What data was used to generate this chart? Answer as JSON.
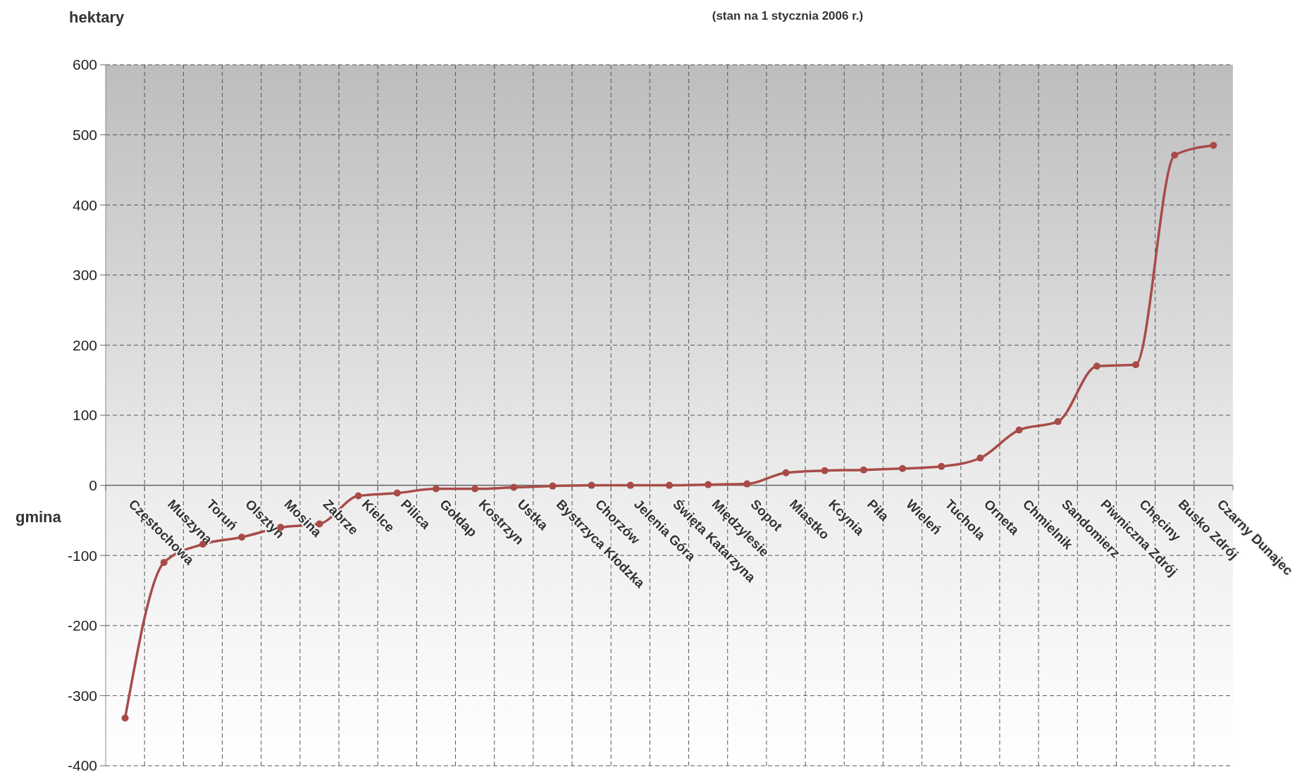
{
  "chart_data": {
    "type": "line",
    "title": "(stan na 1 stycznia 2006 r.)",
    "xlabel": "gmina",
    "ylabel": "hektary",
    "categories": [
      "Częstochowa",
      "Muszyna",
      "Toruń",
      "Olsztyn",
      "Mosina",
      "Zabrze",
      "Kielce",
      "Pilica",
      "Gołdap",
      "Kostrzyn",
      "Ustka",
      "Bystrzyca Kłodzka",
      "Chorzów",
      "Jelenia Góra",
      "Święta Katarzyna",
      "Międzylesie",
      "Sopot",
      "Miastko",
      "Kcynia",
      "Piła",
      "Wieleń",
      "Tuchola",
      "Orneta",
      "Chmielnik",
      "Sandomierz",
      "Piwniczna Zdrój",
      "Chęciny",
      "Busko Zdrój",
      "Czarny Dunajec"
    ],
    "series": [
      {
        "color": "#a84b48",
        "values": [
          -332,
          -110,
          -84,
          -74,
          -60,
          -55,
          -15,
          -11,
          -5,
          -5,
          -3,
          -1,
          0,
          0,
          0,
          1,
          2,
          18,
          21,
          22,
          24,
          27,
          39,
          79,
          91,
          170,
          172,
          471,
          485
        ]
      }
    ],
    "ylim": [
      -400,
      600
    ],
    "yticks": [
      -400,
      -300,
      -200,
      -100,
      0,
      100,
      200,
      300,
      400,
      500,
      600
    ],
    "grid": true,
    "marker": "circle",
    "line_style": "solid"
  }
}
